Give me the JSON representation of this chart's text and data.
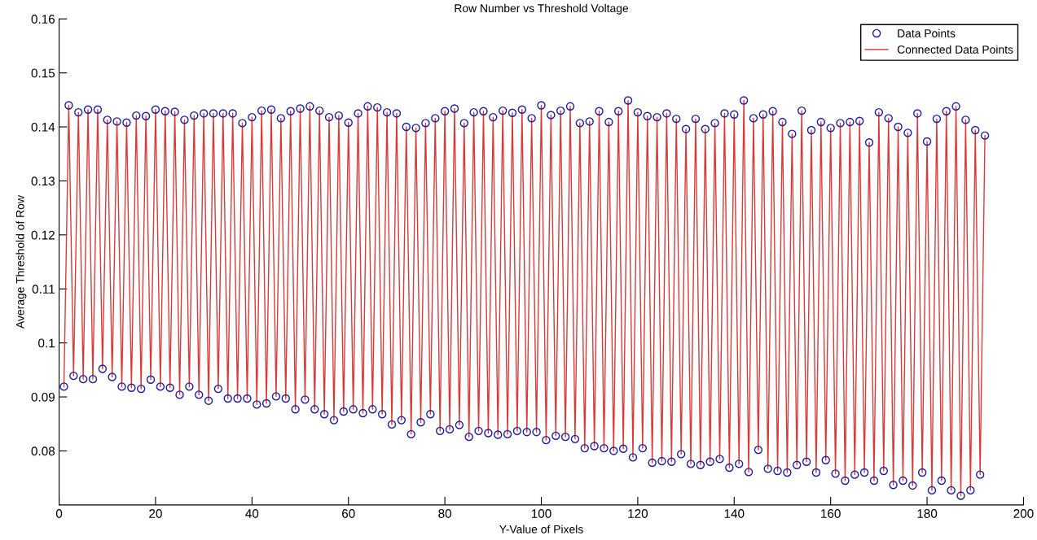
{
  "chart_data": {
    "type": "line",
    "title": "Row Number vs Threshold Voltage",
    "xlabel": "Y-Value of Pixels",
    "ylabel": "Average Threshold of Row",
    "x": [
      1,
      2,
      3,
      4,
      5,
      6,
      7,
      8,
      9,
      10,
      11,
      12,
      13,
      14,
      15,
      16,
      17,
      18,
      19,
      20,
      21,
      22,
      23,
      24,
      25,
      26,
      27,
      28,
      29,
      30,
      31,
      32,
      33,
      34,
      35,
      36,
      37,
      38,
      39,
      40,
      41,
      42,
      43,
      44,
      45,
      46,
      47,
      48,
      49,
      50,
      51,
      52,
      53,
      54,
      55,
      56,
      57,
      58,
      59,
      60,
      61,
      62,
      63,
      64,
      65,
      66,
      67,
      68,
      69,
      70,
      71,
      72,
      73,
      74,
      75,
      76,
      77,
      78,
      79,
      80,
      81,
      82,
      83,
      84,
      85,
      86,
      87,
      88,
      89,
      90,
      91,
      92,
      93,
      94,
      95,
      96,
      97,
      98,
      99,
      100,
      101,
      102,
      103,
      104,
      105,
      106,
      107,
      108,
      109,
      110,
      111,
      112,
      113,
      114,
      115,
      116,
      117,
      118,
      119,
      120,
      121,
      122,
      123,
      124,
      125,
      126,
      127,
      128,
      129,
      130,
      131,
      132,
      133,
      134,
      135,
      136,
      137,
      138,
      139,
      140,
      141,
      142,
      143,
      144,
      145,
      146,
      147,
      148,
      149,
      150,
      151,
      152,
      153,
      154,
      155,
      156,
      157,
      158,
      159,
      160,
      161,
      162,
      163,
      164,
      165,
      166,
      167,
      168,
      169,
      170,
      171,
      172,
      173,
      174,
      175,
      176,
      177,
      178,
      179,
      180,
      181,
      182,
      183,
      184,
      185,
      186,
      187,
      188,
      189,
      190,
      191,
      192
    ],
    "series": [
      {
        "name": "Data Points",
        "type": "scatter",
        "marker": "circle",
        "color": "#1c1c9c",
        "values": [
          0.0919,
          0.144,
          0.0939,
          0.1427,
          0.0933,
          0.1432,
          0.0933,
          0.1432,
          0.0952,
          0.1413,
          0.0937,
          0.141,
          0.0919,
          0.1408,
          0.0917,
          0.1421,
          0.0915,
          0.142,
          0.0932,
          0.1432,
          0.0919,
          0.1429,
          0.0917,
          0.1428,
          0.0904,
          0.1413,
          0.0919,
          0.1421,
          0.0904,
          0.1425,
          0.0893,
          0.1425,
          0.0915,
          0.1425,
          0.0897,
          0.1425,
          0.0897,
          0.1407,
          0.0897,
          0.1418,
          0.0886,
          0.143,
          0.0888,
          0.1432,
          0.0901,
          0.1416,
          0.0897,
          0.1429,
          0.0877,
          0.1434,
          0.0895,
          0.1438,
          0.0877,
          0.143,
          0.0868,
          0.1418,
          0.0857,
          0.1421,
          0.0873,
          0.1408,
          0.0877,
          0.1425,
          0.087,
          0.1438,
          0.0877,
          0.1436,
          0.0868,
          0.1427,
          0.0849,
          0.1425,
          0.0857,
          0.14,
          0.0831,
          0.1398,
          0.0853,
          0.1407,
          0.0868,
          0.1416,
          0.0837,
          0.1429,
          0.084,
          0.1434,
          0.0848,
          0.1407,
          0.0826,
          0.1427,
          0.0837,
          0.1429,
          0.0833,
          0.1418,
          0.083,
          0.143,
          0.0831,
          0.1426,
          0.0837,
          0.1432,
          0.0835,
          0.1416,
          0.0835,
          0.144,
          0.082,
          0.1422,
          0.0828,
          0.143,
          0.0826,
          0.1438,
          0.0822,
          0.1407,
          0.0805,
          0.141,
          0.0809,
          0.1429,
          0.0805,
          0.1409,
          0.08,
          0.1429,
          0.0804,
          0.1449,
          0.0788,
          0.1427,
          0.0805,
          0.142,
          0.0778,
          0.1418,
          0.0781,
          0.1425,
          0.078,
          0.1415,
          0.0794,
          0.1396,
          0.0776,
          0.1415,
          0.0774,
          0.1396,
          0.078,
          0.1407,
          0.0785,
          0.1425,
          0.0769,
          0.1423,
          0.0776,
          0.1449,
          0.0761,
          0.1416,
          0.0802,
          0.1423,
          0.0767,
          0.1429,
          0.0763,
          0.1409,
          0.076,
          0.1387,
          0.0774,
          0.143,
          0.078,
          0.1394,
          0.076,
          0.1409,
          0.0783,
          0.1398,
          0.0758,
          0.1407,
          0.0745,
          0.1409,
          0.0756,
          0.1411,
          0.076,
          0.1371,
          0.0745,
          0.1427,
          0.0763,
          0.1416,
          0.0737,
          0.14,
          0.0745,
          0.1389,
          0.0736,
          0.1425,
          0.076,
          0.1373,
          0.0727,
          0.1415,
          0.0745,
          0.1429,
          0.0727,
          0.1438,
          0.0717,
          0.1413,
          0.0727,
          0.1394,
          0.0756,
          0.1384
        ]
      },
      {
        "name": "Connected Data Points",
        "marker": "none",
        "line_style": "solid",
        "color": "#d83a3a",
        "values": [
          0.0919,
          0.144,
          0.0939,
          0.1427,
          0.0933,
          0.1432,
          0.0933,
          0.1432,
          0.0952,
          0.1413,
          0.0937,
          0.141,
          0.0919,
          0.1408,
          0.0917,
          0.1421,
          0.0915,
          0.142,
          0.0932,
          0.1432,
          0.0919,
          0.1429,
          0.0917,
          0.1428,
          0.0904,
          0.1413,
          0.0919,
          0.1421,
          0.0904,
          0.1425,
          0.0893,
          0.1425,
          0.0915,
          0.1425,
          0.0897,
          0.1425,
          0.0897,
          0.1407,
          0.0897,
          0.1418,
          0.0886,
          0.143,
          0.0888,
          0.1432,
          0.0901,
          0.1416,
          0.0897,
          0.1429,
          0.0877,
          0.1434,
          0.0895,
          0.1438,
          0.0877,
          0.143,
          0.0868,
          0.1418,
          0.0857,
          0.1421,
          0.0873,
          0.1408,
          0.0877,
          0.1425,
          0.087,
          0.1438,
          0.0877,
          0.1436,
          0.0868,
          0.1427,
          0.0849,
          0.1425,
          0.0857,
          0.14,
          0.0831,
          0.1398,
          0.0853,
          0.1407,
          0.0868,
          0.1416,
          0.0837,
          0.1429,
          0.084,
          0.1434,
          0.0848,
          0.1407,
          0.0826,
          0.1427,
          0.0837,
          0.1429,
          0.0833,
          0.1418,
          0.083,
          0.143,
          0.0831,
          0.1426,
          0.0837,
          0.1432,
          0.0835,
          0.1416,
          0.0835,
          0.144,
          0.082,
          0.1422,
          0.0828,
          0.143,
          0.0826,
          0.1438,
          0.0822,
          0.1407,
          0.0805,
          0.141,
          0.0809,
          0.1429,
          0.0805,
          0.1409,
          0.08,
          0.1429,
          0.0804,
          0.1449,
          0.0788,
          0.1427,
          0.0805,
          0.142,
          0.0778,
          0.1418,
          0.0781,
          0.1425,
          0.078,
          0.1415,
          0.0794,
          0.1396,
          0.0776,
          0.1415,
          0.0774,
          0.1396,
          0.078,
          0.1407,
          0.0785,
          0.1425,
          0.0769,
          0.1423,
          0.0776,
          0.1449,
          0.0761,
          0.1416,
          0.0802,
          0.1423,
          0.0767,
          0.1429,
          0.0763,
          0.1409,
          0.076,
          0.1387,
          0.0774,
          0.143,
          0.078,
          0.1394,
          0.076,
          0.1409,
          0.0783,
          0.1398,
          0.0758,
          0.1407,
          0.0745,
          0.1409,
          0.0756,
          0.1411,
          0.076,
          0.1371,
          0.0745,
          0.1427,
          0.0763,
          0.1416,
          0.0737,
          0.14,
          0.0745,
          0.1389,
          0.0736,
          0.1425,
          0.076,
          0.1373,
          0.0727,
          0.1415,
          0.0745,
          0.1429,
          0.0727,
          0.1438,
          0.0717,
          0.1413,
          0.0727,
          0.1394,
          0.0756,
          0.1384
        ]
      }
    ],
    "xlim": [
      0,
      200
    ],
    "xticks": [
      0,
      20,
      40,
      60,
      80,
      100,
      120,
      140,
      160,
      180,
      200
    ],
    "ylim": [
      0.07,
      0.16
    ],
    "yticks": [
      0.08,
      0.09,
      {
        "value": 0.1,
        "label": "0.1"
      },
      0.11,
      0.12,
      0.13,
      0.14,
      0.15,
      0.16
    ],
    "grid": false,
    "legend": "top right"
  }
}
